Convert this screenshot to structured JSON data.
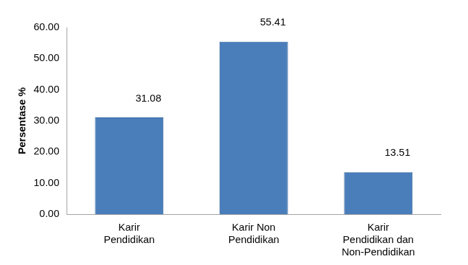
{
  "chart_data": {
    "type": "bar",
    "y_label": "Persentase %",
    "categories": [
      [
        "Karir",
        "Pendidikan"
      ],
      [
        "Karir Non",
        "Pendidikan"
      ],
      [
        "Karir",
        "Pendidikan dan",
        "Non-Pendidikan"
      ]
    ],
    "values": [
      31.08,
      55.41,
      13.51
    ],
    "color": "#4a7ebb",
    "ylim": [
      0,
      60
    ],
    "yticks": [
      {
        "value": 0,
        "label": "0.00"
      },
      {
        "value": 10,
        "label": "10.00"
      },
      {
        "value": 20,
        "label": "20.00"
      },
      {
        "value": 30,
        "label": "30.00"
      },
      {
        "value": 40,
        "label": "40.00"
      },
      {
        "value": 50,
        "label": "50.00"
      },
      {
        "value": 60,
        "label": "60.00"
      }
    ],
    "grid": false,
    "data_labels": true
  }
}
